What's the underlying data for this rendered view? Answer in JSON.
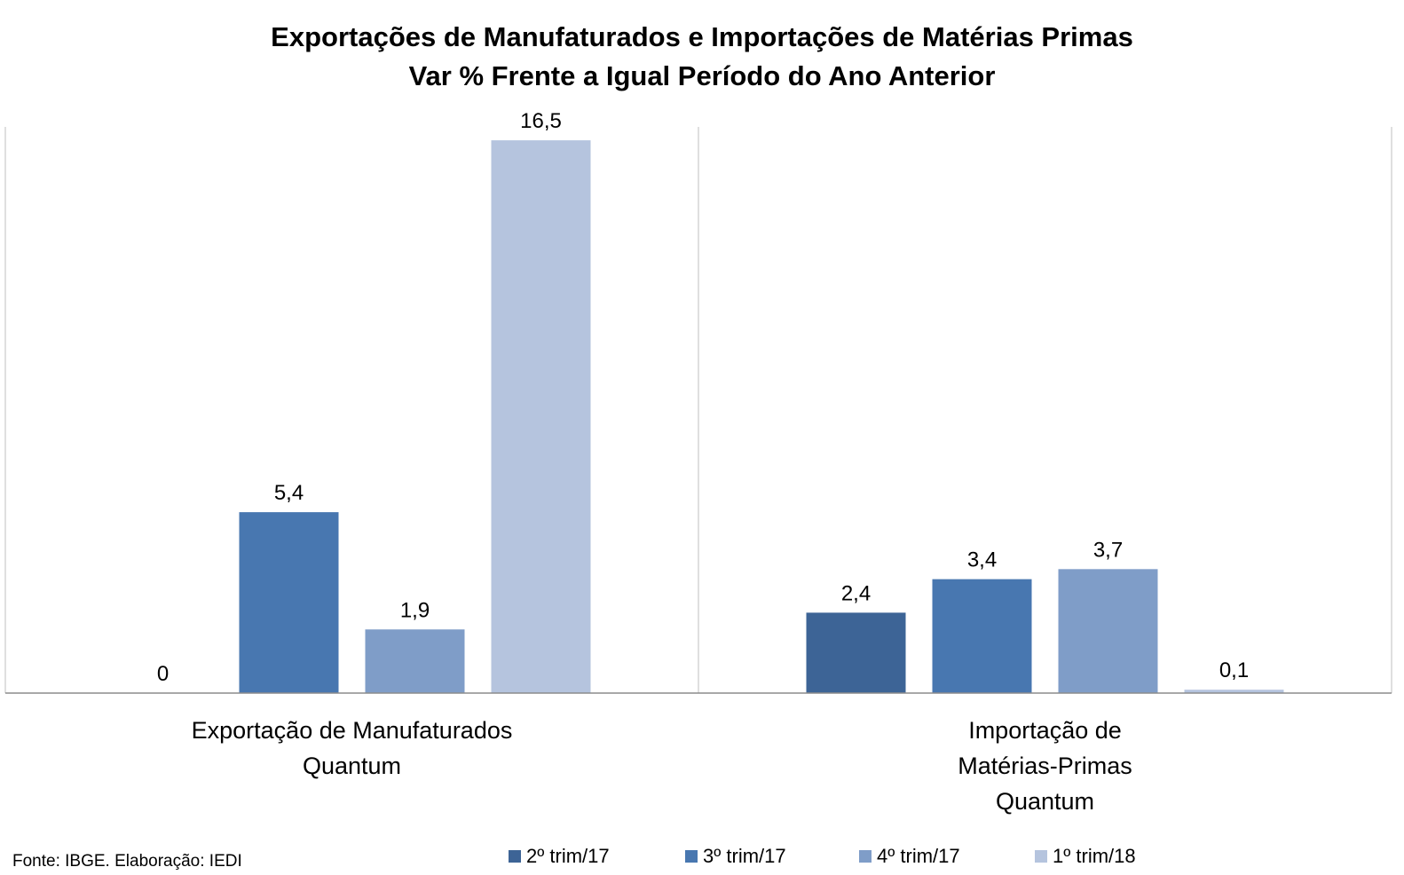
{
  "chart_data": {
    "type": "bar",
    "title": [
      "Exportações de Manufaturados e Importações de Matérias Primas",
      "Var % Frente a Igual Período do Ano Anterior"
    ],
    "categories": [
      [
        "Exportação de Manufaturados",
        "Quantum"
      ],
      [
        "Importação de",
        "Matérias-Primas",
        "Quantum"
      ]
    ],
    "series": [
      {
        "name": "2º trim/17",
        "color": "#3d6496",
        "values": [
          0,
          2.4
        ],
        "labels": [
          "0",
          "2,4"
        ]
      },
      {
        "name": "3º trim/17",
        "color": "#4877b0",
        "values": [
          5.4,
          3.4
        ],
        "labels": [
          "5,4",
          "3,4"
        ]
      },
      {
        "name": "4º trim/17",
        "color": "#7f9dc8",
        "values": [
          1.9,
          3.7
        ],
        "labels": [
          "1,9",
          "3,7"
        ]
      },
      {
        "name": "1º trim/18",
        "color": "#b5c4de",
        "values": [
          16.5,
          0.1
        ],
        "labels": [
          "16,5",
          "0,1"
        ]
      }
    ],
    "ylim": [
      0,
      16.9
    ],
    "grid": false,
    "legend": "bottom",
    "source": "Fonte: IBGE. Elaboração: IEDI"
  }
}
